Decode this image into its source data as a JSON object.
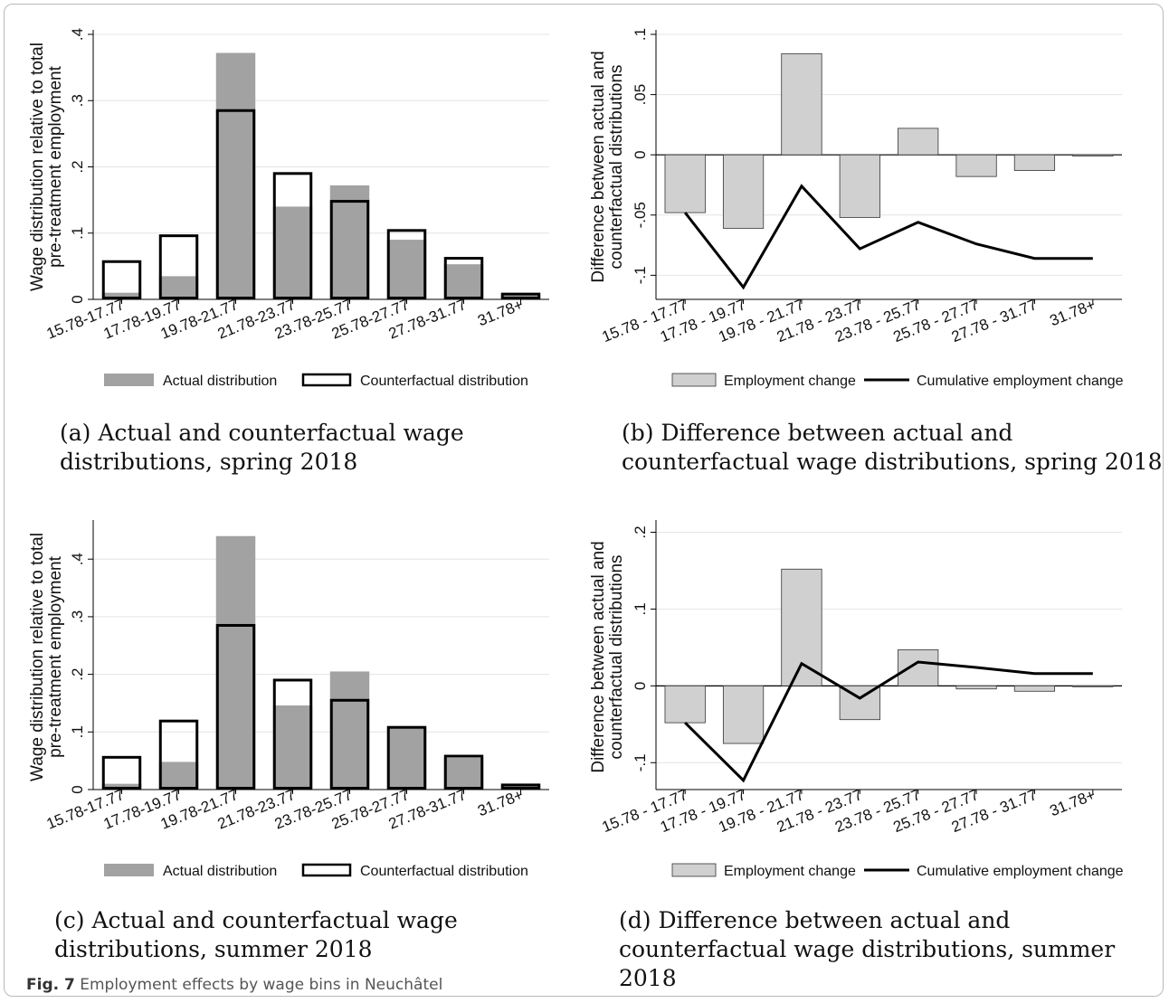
{
  "figure_caption": {
    "label": "Fig. 7",
    "text": "Employment effects by wage bins in Neuchâtel"
  },
  "colors": {
    "actual": "#a2a2a2",
    "counterfactual_stroke": "#000000",
    "diff_bar": "#d0d0d0",
    "cum_line": "#000000",
    "grid": "#e4e4e4"
  },
  "chart_data": [
    {
      "id": "a",
      "type": "bar",
      "caption": "(a) Actual and counterfactual wage distributions, spring 2018",
      "ylabel": [
        "Wage distribution relative to total",
        "pre-treatment employment"
      ],
      "xlabel": "",
      "ylim": [
        0,
        0.4
      ],
      "yticks": [
        0,
        0.1,
        0.2,
        0.3,
        0.4
      ],
      "ytick_labels": [
        "0",
        ".1",
        ".2",
        ".3",
        ".4"
      ],
      "categories": [
        "15.78-17.77",
        "17.78-19.77",
        "19.78-21.77",
        "21.78-23.77",
        "23.78-25.77",
        "25.78-27.77",
        "27.78-31.77",
        "31.78+"
      ],
      "series": [
        {
          "name": "Actual distribution",
          "values": [
            0.01,
            0.035,
            0.372,
            0.14,
            0.172,
            0.09,
            0.053,
            0.007
          ]
        },
        {
          "name": "Counterfactual distribution",
          "values": [
            0.057,
            0.096,
            0.285,
            0.19,
            0.148,
            0.104,
            0.062,
            0.008
          ]
        }
      ],
      "legend": [
        "Actual distribution",
        "Counterfactual distribution"
      ],
      "legend_position": "bottom",
      "grid": true
    },
    {
      "id": "b",
      "type": "bar",
      "caption": "(b) Difference between actual and counterfactual wage distributions, spring 2018",
      "ylabel": [
        "Difference between actual and",
        "counterfactual distributions"
      ],
      "xlabel": "",
      "ylim": [
        -0.12,
        0.1
      ],
      "yticks": [
        -0.1,
        -0.05,
        0,
        0.05,
        0.1
      ],
      "ytick_labels": [
        "-.1",
        "-.05",
        "0",
        ".05",
        ".1"
      ],
      "categories": [
        "15.78 - 17.77",
        "17.78 - 19.77",
        "19.78 - 21.77",
        "21.78 - 23.77",
        "23.78 - 25.77",
        "25.78 - 27.77",
        "27.78 - 31.77",
        "31.78+"
      ],
      "series": [
        {
          "name": "Employment change",
          "values": [
            -0.048,
            -0.061,
            0.084,
            -0.052,
            0.022,
            -0.018,
            -0.013,
            -0.001
          ]
        },
        {
          "name": "Cumulative employment change",
          "values": [
            -0.048,
            -0.11,
            -0.026,
            -0.078,
            -0.056,
            -0.074,
            -0.086,
            -0.086
          ]
        }
      ],
      "legend": [
        "Employment change",
        "Cumulative employment change"
      ],
      "legend_position": "bottom",
      "grid": true
    },
    {
      "id": "c",
      "type": "bar",
      "caption": "(c) Actual and counterfactual wage distributions, summer 2018",
      "ylabel": [
        "Wage distribution relative to total",
        "pre-treatment employment"
      ],
      "xlabel": "",
      "ylim": [
        0,
        0.46
      ],
      "yticks": [
        0,
        0.1,
        0.2,
        0.3,
        0.4
      ],
      "ytick_labels": [
        "0",
        ".1",
        ".2",
        ".3",
        ".4"
      ],
      "categories": [
        "15.78-17.77",
        "17.78-19.77",
        "19.78-21.77",
        "21.78-23.77",
        "23.78-25.77",
        "25.78-27.77",
        "27.78-31.77",
        "31.78+"
      ],
      "series": [
        {
          "name": "Actual distribution",
          "values": [
            0.01,
            0.048,
            0.44,
            0.146,
            0.205,
            0.108,
            0.055,
            0.008
          ]
        },
        {
          "name": "Counterfactual distribution",
          "values": [
            0.056,
            0.119,
            0.285,
            0.19,
            0.155,
            0.108,
            0.058,
            0.008
          ]
        }
      ],
      "legend": [
        "Actual distribution",
        "Counterfactual distribution"
      ],
      "legend_position": "bottom",
      "grid": true
    },
    {
      "id": "d",
      "type": "bar",
      "caption": "(d) Difference between actual and counterfactual wage distributions, summer 2018",
      "ylabel": [
        "Difference between actual and",
        "counterfactual distributions"
      ],
      "xlabel": "",
      "ylim": [
        -0.135,
        0.21
      ],
      "yticks": [
        -0.1,
        0,
        0.1,
        0.2
      ],
      "ytick_labels": [
        "-.1",
        "0",
        ".1",
        ".2"
      ],
      "categories": [
        "15.78 - 17.77",
        "17.78 - 19.77",
        "19.78 - 21.77",
        "21.78 - 23.77",
        "23.78 - 25.77",
        "25.78 - 27.77",
        "27.78 - 31.77",
        "31.78+"
      ],
      "series": [
        {
          "name": "Employment change",
          "values": [
            -0.048,
            -0.075,
            0.152,
            -0.044,
            0.047,
            -0.004,
            -0.007,
            0.0
          ]
        },
        {
          "name": "Cumulative employment change",
          "values": [
            -0.048,
            -0.123,
            0.029,
            -0.016,
            0.031,
            0.024,
            0.016,
            0.016
          ]
        }
      ],
      "legend": [
        "Employment change",
        "Cumulative employment change"
      ],
      "legend_position": "bottom",
      "grid": true
    }
  ]
}
